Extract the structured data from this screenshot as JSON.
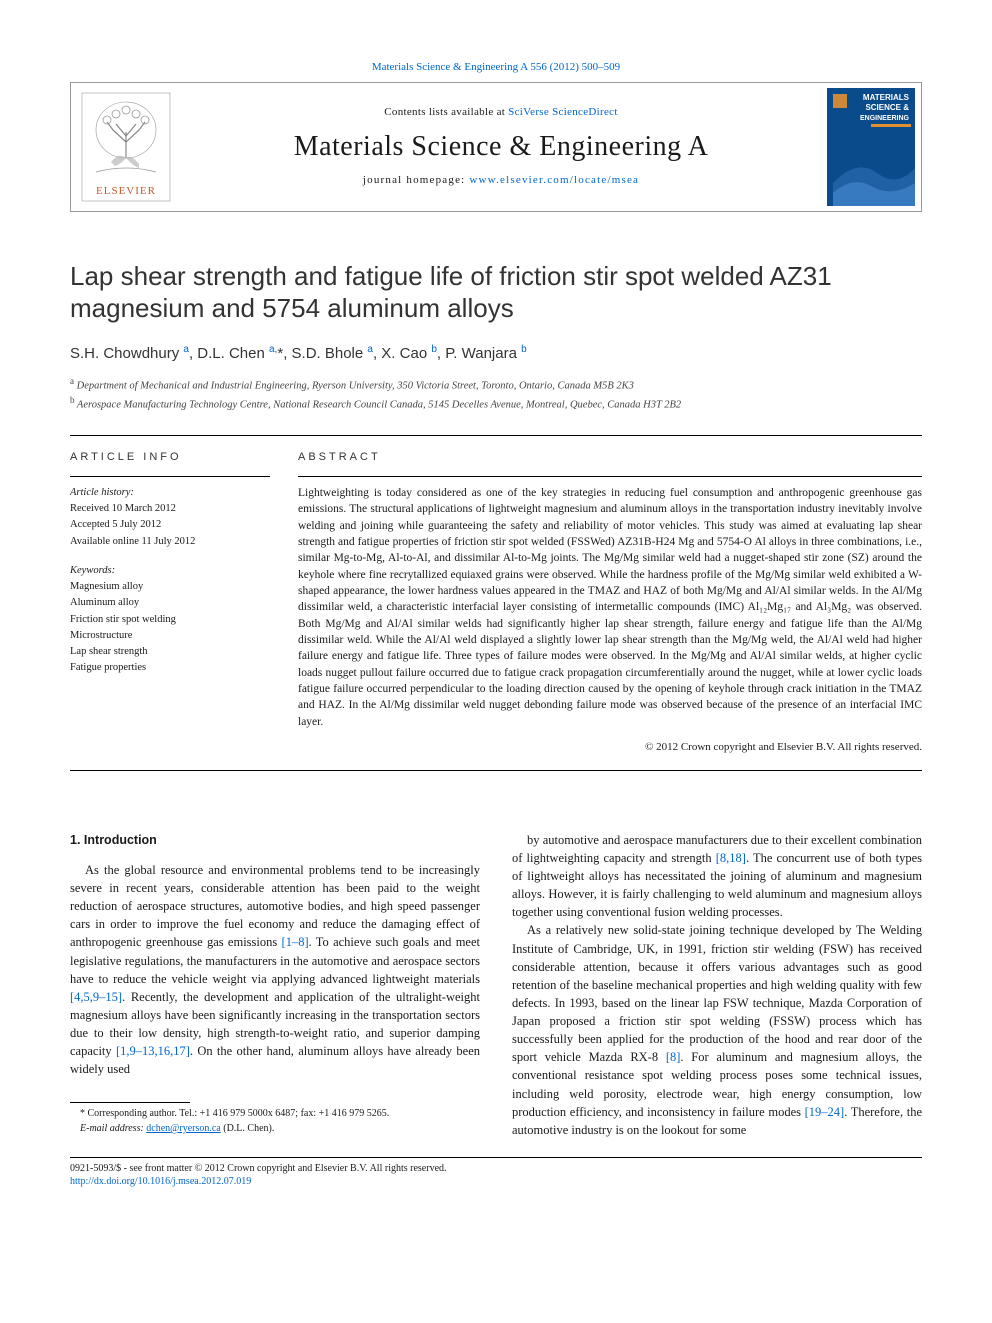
{
  "biblio": {
    "citation": "Materials Science & Engineering A 556 (2012) 500–509",
    "link_color": "#0066cc"
  },
  "header": {
    "contents_prefix": "Contents lists available at ",
    "contents_link": "SciVerse ScienceDirect",
    "journal_name": "Materials Science & Engineering A",
    "homepage_prefix": "journal homepage: ",
    "homepage_link": "www.elsevier.com/locate/msea",
    "publisher_logo_text": "ELSEVIER",
    "cover": {
      "title_line1": "MATERIALS",
      "title_line2": "SCIENCE &",
      "title_line3": "ENGINEERING",
      "bg_color": "#0a4b8c",
      "accent_color": "#e09030",
      "text_color": "#ffffff"
    }
  },
  "article": {
    "title": "Lap shear strength and fatigue life of friction stir spot welded AZ31 magnesium and 5754 aluminum alloys",
    "authors_html": "S.H. Chowdhury <sup>a</sup>, D.L. Chen <sup>a,</sup><span class='corr'>*</span>, S.D. Bhole <sup>a</sup>, X. Cao <sup>b</sup>, P. Wanjara <sup>b</sup>",
    "affiliations": [
      {
        "sup": "a",
        "text": "Department of Mechanical and Industrial Engineering, Ryerson University, 350 Victoria Street, Toronto, Ontario, Canada M5B 2K3"
      },
      {
        "sup": "b",
        "text": "Aerospace Manufacturing Technology Centre, National Research Council Canada, 5145 Decelles Avenue, Montreal, Quebec, Canada H3T 2B2"
      }
    ]
  },
  "article_info": {
    "head": "article info",
    "history_head": "Article history:",
    "history": [
      "Received 10 March 2012",
      "Accepted 5 July 2012",
      "Available online 11 July 2012"
    ],
    "keywords_head": "Keywords:",
    "keywords": [
      "Magnesium alloy",
      "Aluminum alloy",
      "Friction stir spot welding",
      "Microstructure",
      "Lap shear strength",
      "Fatigue properties"
    ]
  },
  "abstract": {
    "head": "abstract",
    "text": "Lightweighting is today considered as one of the key strategies in reducing fuel consumption and anthropogenic greenhouse gas emissions. The structural applications of lightweight magnesium and aluminum alloys in the transportation industry inevitably involve welding and joining while guaranteeing the safety and reliability of motor vehicles. This study was aimed at evaluating lap shear strength and fatigue properties of friction stir spot welded (FSSWed) AZ31B-H24 Mg and 5754-O Al alloys in three combinations, i.e., similar Mg-to-Mg, Al-to-Al, and dissimilar Al-to-Mg joints. The Mg/Mg similar weld had a nugget-shaped stir zone (SZ) around the keyhole where fine recrytallized equiaxed grains were observed. While the hardness profile of the Mg/Mg similar weld exhibited a W-shaped appearance, the lower hardness values appeared in the TMAZ and HAZ of both Mg/Mg and Al/Al similar welds. In the Al/Mg dissimilar weld, a characteristic interfacial layer consisting of intermetallic compounds (IMC) Al₁₂Mg₁₇ and Al₃Mg₂ was observed. Both Mg/Mg and Al/Al similar welds had significantly higher lap shear strength, failure energy and fatigue life than the Al/Mg dissimilar weld. While the Al/Al weld displayed a slightly lower lap shear strength than the Mg/Mg weld, the Al/Al weld had higher failure energy and fatigue life. Three types of failure modes were observed. In the Mg/Mg and Al/Al similar welds, at higher cyclic loads nugget pullout failure occurred due to fatigue crack propagation circumferentially around the nugget, while at lower cyclic loads fatigue failure occurred perpendicular to the loading direction caused by the opening of keyhole through crack initiation in the TMAZ and HAZ. In the Al/Mg dissimilar weld nugget debonding failure mode was observed because of the presence of an interfacial IMC layer.",
    "copyright": "© 2012 Crown copyright and Elsevier B.V. All rights reserved."
  },
  "body": {
    "section_num": "1.",
    "section_title": "Introduction",
    "col1_p1": "As the global resource and environmental problems tend to be increasingly severe in recent years, considerable attention has been paid to the weight reduction of aerospace structures, automotive bodies, and high speed passenger cars in order to improve the fuel economy and reduce the damaging effect of anthropogenic greenhouse gas emissions [1–8]. To achieve such goals and meet legislative regulations, the manufacturers in the automotive and aerospace sectors have to reduce the vehicle weight via applying advanced lightweight materials [4,5,9–15]. Recently, the development and application of the ultralight-weight magnesium alloys have been significantly increasing in the transportation sectors due to their low density, high strength-to-weight ratio, and superior damping capacity [1,9–13,16,17]. On the other hand, aluminum alloys have already been widely used",
    "col2_p1": "by automotive and aerospace manufacturers due to their excellent combination of lightweighting capacity and strength [8,18]. The concurrent use of both types of lightweight alloys has necessitated the joining of aluminum and magnesium alloys. However, it is fairly challenging to weld aluminum and magnesium alloys together using conventional fusion welding processes.",
    "col2_p2": "As a relatively new solid-state joining technique developed by The Welding Institute of Cambridge, UK, in 1991, friction stir welding (FSW) has received considerable attention, because it offers various advantages such as good retention of the baseline mechanical properties and high welding quality with few defects. In 1993, based on the linear lap FSW technique, Mazda Corporation of Japan proposed a friction stir spot welding (FSSW) process which has successfully been applied for the production of the hood and rear door of the sport vehicle Mazda RX-8 [8]. For aluminum and magnesium alloys, the conventional resistance spot welding process poses some technical issues, including weld porosity, electrode wear, high energy consumption, low production efficiency, and inconsistency in failure modes [19–24]. Therefore, the automotive industry is on the lookout for some",
    "refs_col1": {
      "r1": "[1–8]",
      "r2": "[4,5,9–15]",
      "r3": "[1,9–13,16,17]"
    },
    "refs_col2": {
      "r1": "[8,18]",
      "r2": "[8]",
      "r3": "[19–24]"
    }
  },
  "footnote": {
    "corr_label": "* Corresponding author. Tel.: +1 416 979 5000x 6487; fax: +1 416 979 5265.",
    "email_label": "E-mail address:",
    "email": "dchen@ryerson.ca",
    "email_name": "(D.L. Chen)."
  },
  "bottom": {
    "issn_line": "0921-5093/$ - see front matter © 2012 Crown copyright and Elsevier B.V. All rights reserved.",
    "doi_link": "http://dx.doi.org/10.1016/j.msea.2012.07.019"
  },
  "colors": {
    "text": "#1a1a1a",
    "link": "#0066cc",
    "rule": "#000000",
    "box_border": "#999999",
    "background": "#ffffff"
  },
  "typography": {
    "body_font": "Georgia, 'Times New Roman', serif",
    "sans_font": "Arial, Helvetica, sans-serif",
    "title_size_pt": 20,
    "journal_size_pt": 21,
    "body_size_pt": 9.5,
    "abstract_size_pt": 8.5,
    "meta_size_pt": 8,
    "footnote_size_pt": 7.5
  }
}
